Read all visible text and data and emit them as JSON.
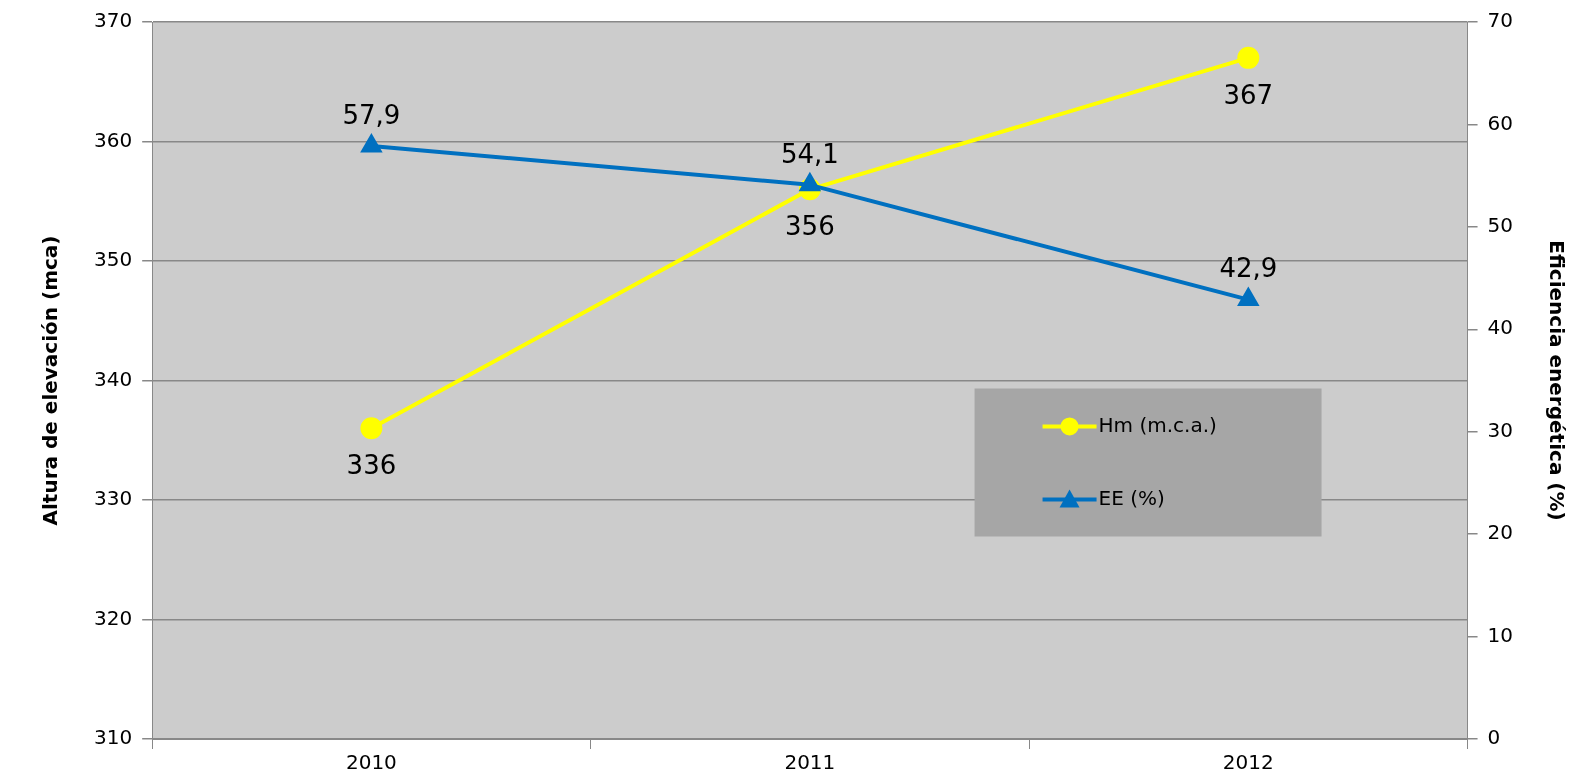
{
  "chart_data": {
    "type": "line",
    "ylabel": "Altura de elevación (mca)",
    "y2label": "Eficiencia energética (%)",
    "categories": [
      "2010",
      "2011",
      "2012"
    ],
    "series": [
      {
        "name": "Hm (m.c.a.)",
        "color": "#ffff00",
        "values": [
          336,
          356,
          367
        ],
        "marker": "circle"
      },
      {
        "name": "EE (%)",
        "color": "#0070c0",
        "values": [
          57.9,
          54.1,
          42.9
        ],
        "axis": "y2",
        "marker": "triangle",
        "value_labels": [
          "57,9",
          "54,1",
          "42,9"
        ]
      }
    ],
    "ylim": [
      310,
      370
    ],
    "yticks": [
      310,
      320,
      330,
      340,
      350,
      360,
      370
    ],
    "y2lim": [
      0,
      70
    ],
    "y2ticks": [
      0,
      10,
      20,
      30,
      40,
      50,
      60,
      70
    ],
    "grid": "y",
    "legend": "right",
    "data_labels": true
  }
}
